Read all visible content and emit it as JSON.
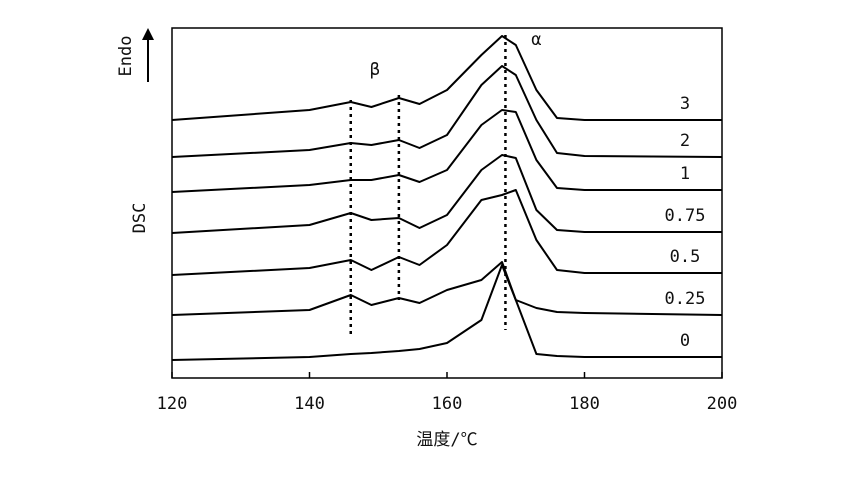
{
  "chart_data": {
    "type": "line",
    "xlabel": "温度/℃",
    "ylabel": "DSC",
    "direction_label": "Endo",
    "annotations": [
      {
        "text": "β",
        "x": 149.5
      },
      {
        "text": "α",
        "x": 173
      }
    ],
    "reference_lines": [
      146,
      153,
      168.5
    ],
    "xlim": [
      120,
      200
    ],
    "xticks": [
      120,
      140,
      160,
      180,
      200
    ],
    "ylim": [
      0,
      350
    ],
    "x": [
      120,
      140,
      146,
      149,
      153,
      156,
      160,
      165,
      168,
      170,
      173,
      176,
      180,
      200
    ],
    "series": [
      {
        "name": "3",
        "color": "#000000",
        "values": [
          258,
          268,
          276,
          271,
          280,
          274,
          288,
          323,
          342,
          333,
          288,
          260,
          258,
          258
        ]
      },
      {
        "name": "2",
        "color": "#000000",
        "values": [
          221,
          228,
          235,
          233,
          238,
          230,
          243,
          293,
          312,
          303,
          258,
          225,
          222,
          221
        ]
      },
      {
        "name": "1",
        "color": "#000000",
        "values": [
          186,
          193,
          198,
          198,
          203,
          196,
          208,
          253,
          268,
          266,
          218,
          190,
          188,
          188
        ]
      },
      {
        "name": "0.75",
        "color": "#000000",
        "values": [
          145,
          153,
          165,
          158,
          160,
          150,
          163,
          208,
          223,
          220,
          168,
          148,
          146,
          146
        ]
      },
      {
        "name": "0.5",
        "color": "#000000",
        "values": [
          103,
          110,
          118,
          108,
          121,
          113,
          133,
          178,
          183,
          188,
          138,
          108,
          105,
          105
        ]
      },
      {
        "name": "0.25",
        "color": "#000000",
        "values": [
          63,
          68,
          83,
          73,
          80,
          75,
          88,
          98,
          116,
          78,
          70,
          66,
          65,
          63
        ]
      },
      {
        "name": "0",
        "color": "#000000",
        "values": [
          18,
          21,
          24,
          25,
          27,
          29,
          35,
          58,
          113,
          78,
          24,
          22,
          21,
          21
        ]
      }
    ]
  }
}
